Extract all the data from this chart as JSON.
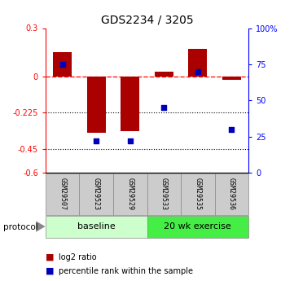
{
  "title": "GDS2234 / 3205",
  "samples": [
    "GSM29507",
    "GSM29523",
    "GSM29529",
    "GSM29533",
    "GSM29535",
    "GSM29536"
  ],
  "log2_ratio": [
    0.15,
    -0.35,
    -0.34,
    0.03,
    0.17,
    -0.02
  ],
  "percentile_rank": [
    75,
    22,
    22,
    45,
    70,
    30
  ],
  "ylim_left": [
    -0.6,
    0.3
  ],
  "ylim_right": [
    0,
    100
  ],
  "yticks_left": [
    0.3,
    0,
    -0.225,
    -0.45,
    -0.6
  ],
  "yticks_right": [
    100,
    75,
    50,
    25,
    0
  ],
  "ytick_labels_left": [
    "0.3",
    "0",
    "-0.225",
    "-0.45",
    "-0.6"
  ],
  "ytick_labels_right": [
    "100%",
    "75",
    "50",
    "25",
    "0"
  ],
  "hline_y": [
    -0.225,
    -0.45
  ],
  "bar_color": "#aa0000",
  "scatter_color": "#0000bb",
  "bar_width": 0.55,
  "protocol_labels": [
    "baseline",
    "20 wk exercise"
  ],
  "baseline_color": "#ccffcc",
  "exercise_color": "#44ee44",
  "legend_bar_label": "log2 ratio",
  "legend_scatter_label": "percentile rank within the sample",
  "title_fontsize": 10,
  "tick_fontsize": 7,
  "sample_fontsize": 6,
  "proto_fontsize": 8
}
